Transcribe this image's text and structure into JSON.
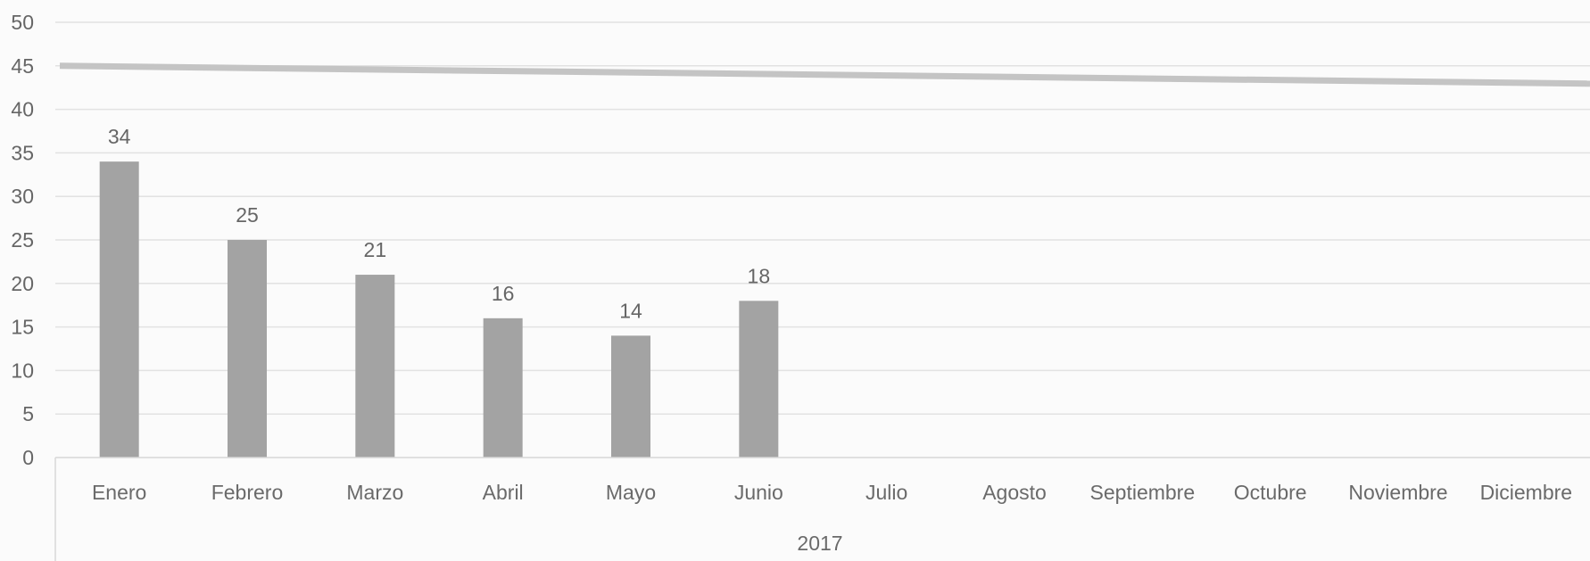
{
  "chart_data": {
    "type": "bar",
    "title": "",
    "xlabel": "",
    "ylabel": "",
    "ylim": [
      0,
      50
    ],
    "yticks": [
      0,
      5,
      10,
      15,
      20,
      25,
      30,
      35,
      40,
      45,
      50
    ],
    "grid": true,
    "legend": "none",
    "group_label": "2017",
    "categories": [
      "Enero",
      "Febrero",
      "Marzo",
      "Abril",
      "Mayo",
      "Junio",
      "Julio",
      "Agosto",
      "Septiembre",
      "Octubre",
      "Noviembre",
      "Diciembre"
    ],
    "values": [
      34,
      25,
      21,
      16,
      14,
      18,
      null,
      null,
      null,
      null,
      null,
      null
    ],
    "reference_line": {
      "value": 45
    },
    "colors": {
      "bar": "#a3a3a3",
      "grid": "#e2e2e2",
      "reference_line": "#c4c4c4",
      "text": "#666666"
    }
  }
}
